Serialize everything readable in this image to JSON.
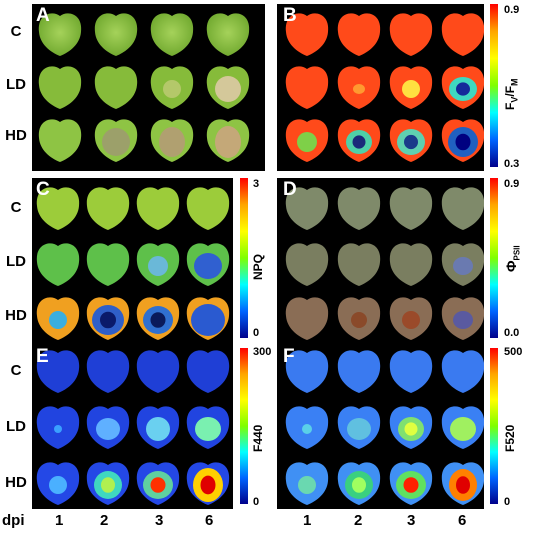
{
  "panels": [
    {
      "letter": "A",
      "type": "photo"
    },
    {
      "letter": "B",
      "colorbar": {
        "max": "0.9",
        "min": "0.3",
        "label_main": "F",
        "label_sub1": "V",
        "label_mid": "/F",
        "label_sub2": "M"
      }
    },
    {
      "letter": "C",
      "colorbar": {
        "max": "3",
        "min": "0",
        "label": "NPQ"
      }
    },
    {
      "letter": "D",
      "colorbar": {
        "max": "0.9",
        "min": "0.0",
        "label_main": "Φ",
        "label_sub": "PSII"
      }
    },
    {
      "letter": "E",
      "colorbar": {
        "max": "300",
        "min": "0",
        "label": "F440"
      }
    },
    {
      "letter": "F",
      "colorbar": {
        "max": "500",
        "min": "0",
        "label": "F520"
      }
    }
  ],
  "rows": [
    "C",
    "LD",
    "HD"
  ],
  "x_axis": {
    "title": "dpi",
    "values": [
      "1",
      "2",
      "3",
      "6"
    ]
  },
  "colors": {
    "background": "#000000",
    "leaf_green": "#8dc13f",
    "fv_red": "#ff4a1a",
    "cb_stops": [
      "#ff0000",
      "#ffa500",
      "#ffff00",
      "#7fff00",
      "#00ffff",
      "#0064ff",
      "#00008b"
    ]
  }
}
